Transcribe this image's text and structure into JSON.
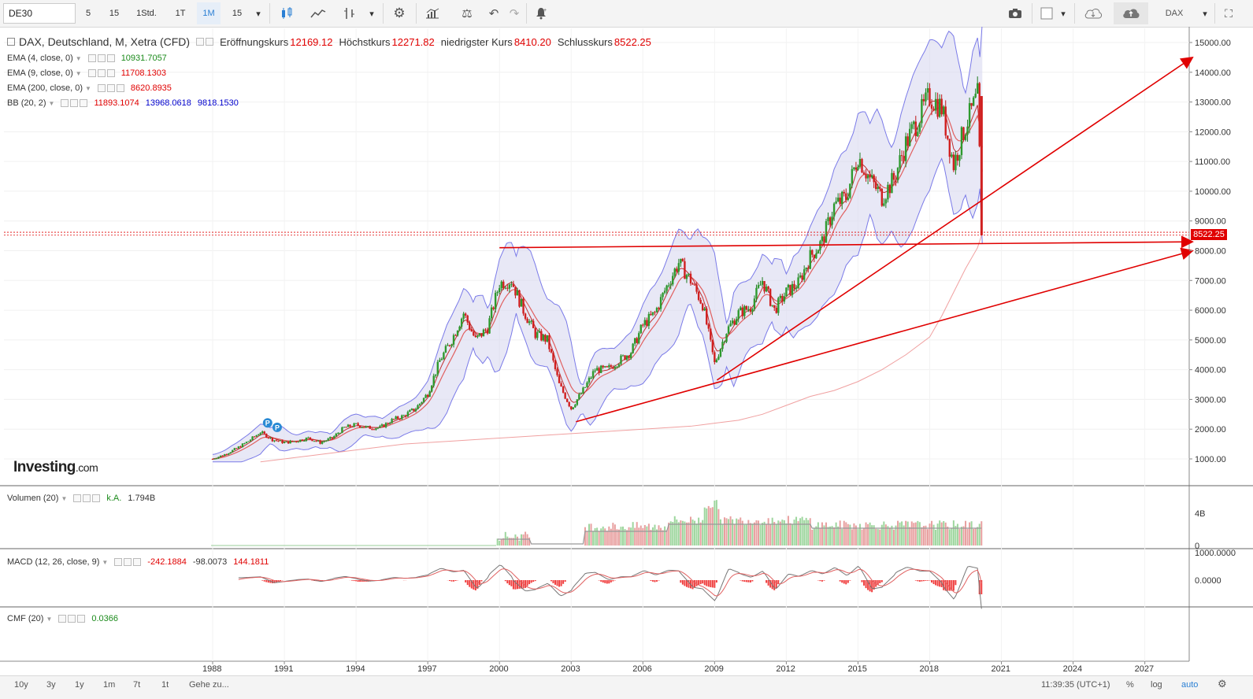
{
  "toolbar": {
    "symbol": "DE30",
    "intervals": [
      "5",
      "15",
      "1Std.",
      "1T",
      "1M",
      "15"
    ],
    "active_interval": "1M",
    "right_symbol": "DAX"
  },
  "main_legend": {
    "title": "DAX, Deutschland, M, Xetra (CFD)",
    "open_label": "Eröffnungskurs",
    "open_value": "12169.12",
    "high_label": "Höchstkurs",
    "high_value": "12271.82",
    "low_label": "niedrigster Kurs",
    "low_value": "8410.20",
    "close_label": "Schlusskurs",
    "close_value": "8522.25"
  },
  "indicators": [
    {
      "name": "EMA (4, close, 0)",
      "values": [
        "10931.7057"
      ],
      "colors": [
        "#1a8a1a"
      ]
    },
    {
      "name": "EMA (9, close, 0)",
      "values": [
        "11708.1303"
      ],
      "colors": [
        "#e00000"
      ]
    },
    {
      "name": "EMA (200, close, 0)",
      "values": [
        "8620.8935"
      ],
      "colors": [
        "#e00000"
      ]
    },
    {
      "name": "BB (20, 2)",
      "values": [
        "11893.1074",
        "13968.0618",
        "9818.1530"
      ],
      "colors": [
        "#e00000",
        "#0000cc",
        "#0000cc"
      ]
    }
  ],
  "watermark": {
    "brand": "Investing",
    "suffix": ".com"
  },
  "price_marker": "8522.25",
  "panels": {
    "volume": {
      "name": "Volumen (20)",
      "values": [
        "k.A.",
        "1.794B"
      ],
      "colors": [
        "#1a8a1a",
        "#333333"
      ],
      "axis_labels": [
        "4B",
        "0"
      ]
    },
    "macd": {
      "name": "MACD (12, 26, close, 9)",
      "values": [
        "-242.1884",
        "-98.0073",
        "144.1811"
      ],
      "colors": [
        "#e00000",
        "#333333",
        "#e00000"
      ],
      "axis_labels": [
        "1000.0000",
        "0.0000"
      ]
    },
    "cmf": {
      "name": "CMF (20)",
      "values": [
        "0.0366"
      ],
      "colors": [
        "#1a8a1a"
      ]
    }
  },
  "bottom": {
    "ranges": [
      "10y",
      "3y",
      "1y",
      "1m",
      "7t",
      "1t"
    ],
    "goto": "Gehe zu...",
    "time": "11:39:35 (UTC+1)",
    "percent": "%",
    "log": "log",
    "auto": "auto"
  },
  "chart_data": {
    "type": "candlestick",
    "title": "DAX, Deutschland, M, Xetra (CFD)",
    "y_ticks": [
      1000,
      2000,
      3000,
      4000,
      5000,
      6000,
      7000,
      8000,
      9000,
      10000,
      11000,
      12000,
      13000,
      14000,
      15000
    ],
    "y_tick_labels": [
      "1000.00",
      "2000.00",
      "3000.00",
      "4000.00",
      "5000.00",
      "6000.00",
      "7000.00",
      "8000.00",
      "9000.00",
      "10000.00",
      "11000.00",
      "12000.00",
      "13000.00",
      "14000.00",
      "15000.00"
    ],
    "x_ticks": [
      "1988",
      "1991",
      "1994",
      "1997",
      "2000",
      "2003",
      "2006",
      "2009",
      "2012",
      "2015",
      "2018",
      "2021",
      "2024",
      "2027"
    ],
    "ylim": [
      0,
      15500
    ],
    "xlim": [
      1987.0,
      2029.5
    ],
    "price_series": {
      "x": [
        1988.0,
        1988.5,
        1989.0,
        1989.5,
        1990.0,
        1990.5,
        1991.0,
        1991.5,
        1992.0,
        1992.5,
        1993.0,
        1993.5,
        1994.0,
        1994.5,
        1995.0,
        1995.5,
        1996.0,
        1996.5,
        1997.0,
        1997.5,
        1998.0,
        1998.5,
        1999.0,
        1999.5,
        2000.0,
        2000.5,
        2001.0,
        2001.5,
        2002.0,
        2002.5,
        2003.0,
        2003.5,
        2004.0,
        2004.5,
        2005.0,
        2005.5,
        2006.0,
        2006.5,
        2007.0,
        2007.5,
        2008.0,
        2008.5,
        2009.0,
        2009.5,
        2010.0,
        2010.5,
        2011.0,
        2011.5,
        2012.0,
        2012.5,
        2013.0,
        2013.5,
        2014.0,
        2014.5,
        2015.0,
        2015.5,
        2016.0,
        2016.5,
        2017.0,
        2017.5,
        2018.0,
        2018.5,
        2019.0,
        2019.5,
        2020.0,
        2020.2
      ],
      "close": [
        1000,
        1150,
        1350,
        1600,
        1900,
        1650,
        1550,
        1600,
        1700,
        1550,
        1700,
        2050,
        2150,
        2050,
        2050,
        2300,
        2450,
        2700,
        3200,
        4300,
        5000,
        5900,
        5000,
        5400,
        6900,
        7000,
        6000,
        5200,
        5000,
        3500,
        2700,
        3300,
        4000,
        4000,
        4300,
        4600,
        5500,
        5900,
        6800,
        7600,
        7000,
        6200,
        4200,
        5300,
        5900,
        6100,
        7000,
        6000,
        6600,
        6900,
        7800,
        8300,
        9500,
        9800,
        11200,
        10400,
        9800,
        10400,
        11600,
        12400,
        13200,
        12800,
        10900,
        12200,
        13200,
        8522
      ]
    },
    "bb_upper_approx": "upper Bollinger band, 20-period",
    "bb_lower_approx": "lower Bollinger band, 20-period",
    "ema200": [
      900,
      1100,
      1300,
      1500,
      1600,
      1700,
      1800,
      1900,
      2000,
      2100,
      2200,
      2300,
      2500,
      2800,
      3100,
      3300,
      3600,
      4000,
      4500,
      5100,
      5800,
      6600,
      7400,
      8100,
      8600
    ],
    "ema200_x": [
      1990,
      1992,
      1994,
      1996,
      1998,
      2000,
      2002,
      2004,
      2006,
      2008,
      2009,
      2010,
      2011,
      2012,
      2013,
      2014,
      2015,
      2016,
      2017,
      2018,
      2018.5,
      2019,
      2019.5,
      2020,
      2020.2
    ],
    "trendlines": [
      {
        "from": [
          2000.0,
          8100
        ],
        "to": [
          2029.0,
          8300
        ],
        "arrow": true
      },
      {
        "from": [
          2003.2,
          2250
        ],
        "to": [
          2029.0,
          8000
        ],
        "arrow": true
      },
      {
        "from": [
          2009.1,
          3650
        ],
        "to": [
          2029.0,
          14500
        ],
        "arrow": true
      }
    ],
    "grid": true,
    "legend_position": "top-left"
  }
}
